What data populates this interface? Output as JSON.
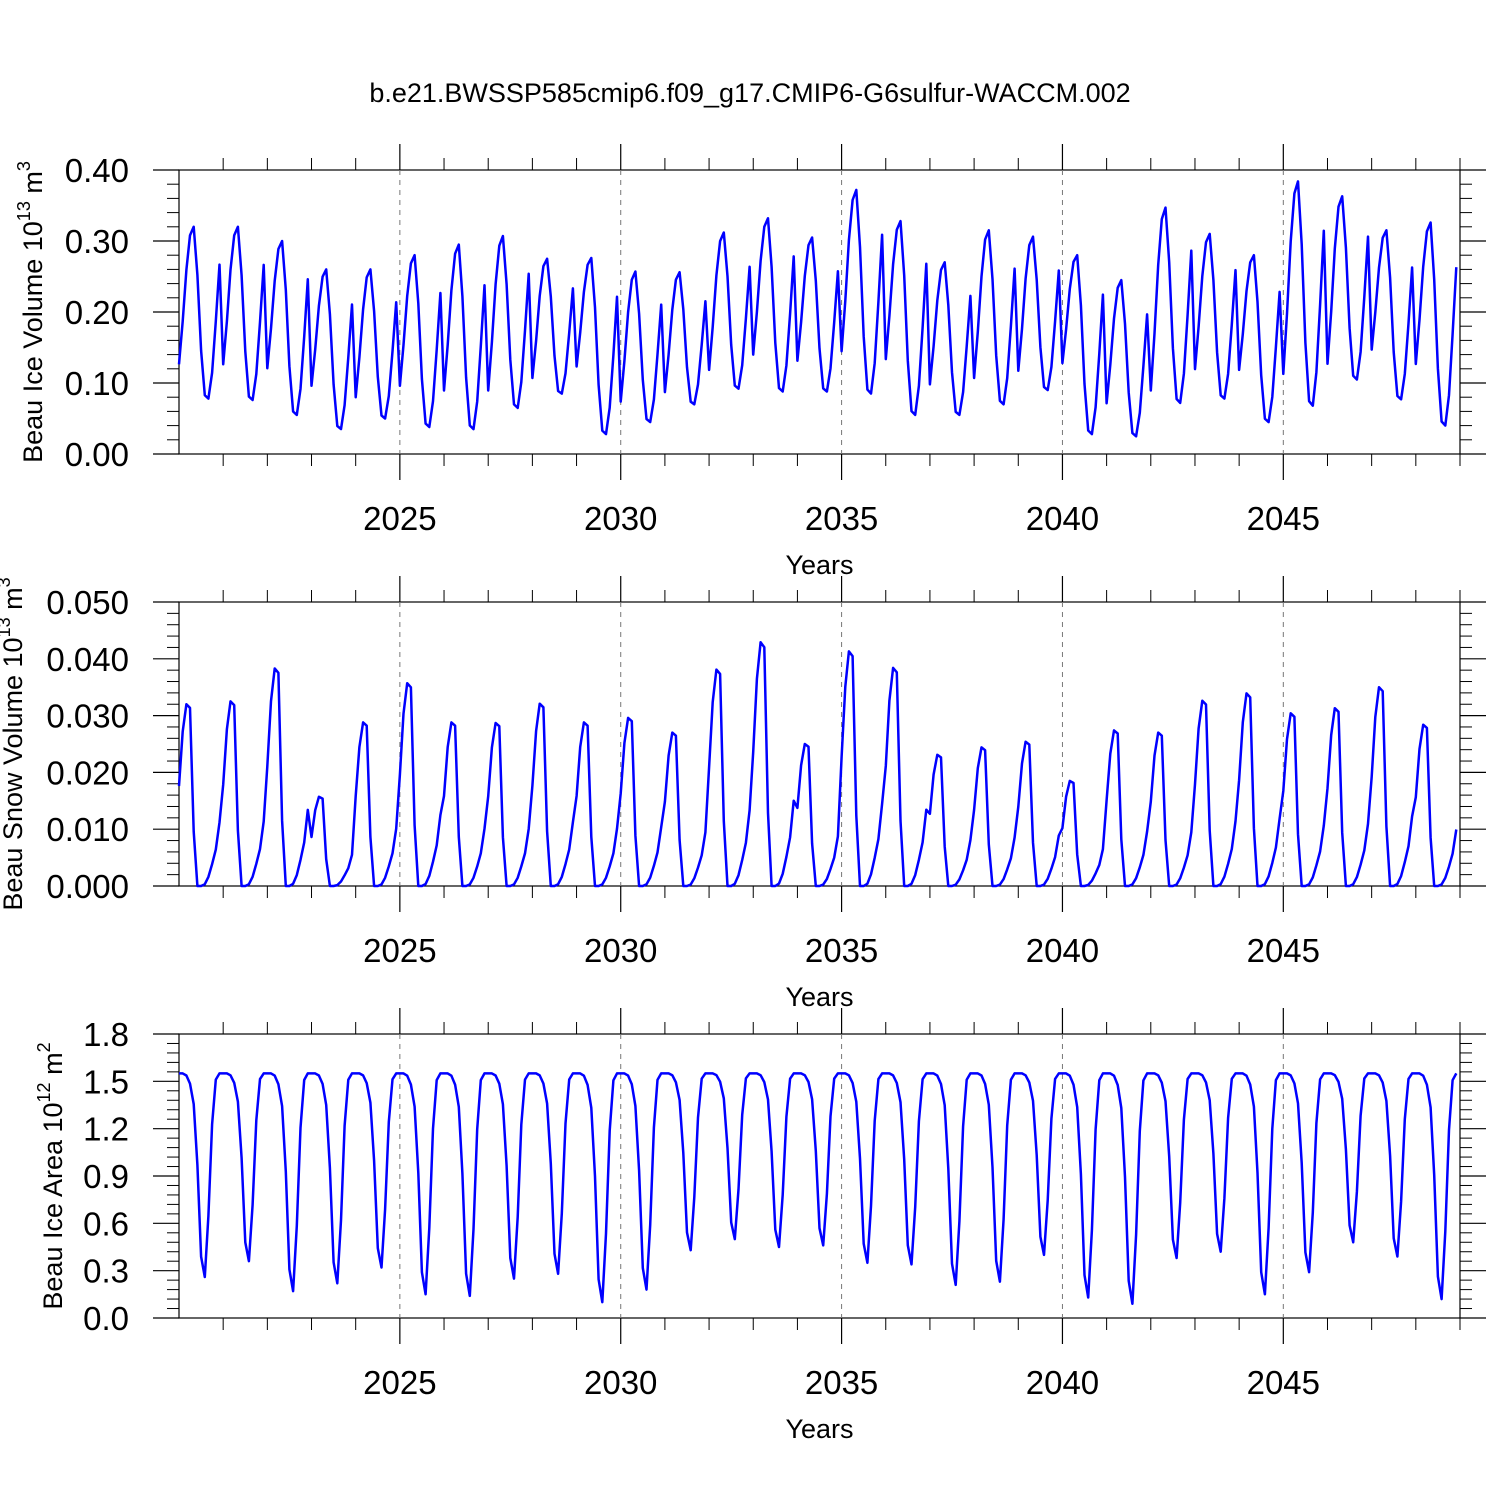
{
  "title": "b.e21.BWSSP585cmip6.f09_g17.CMIP6-G6sulfur-WACCM.002",
  "chart_data": [
    {
      "type": "line",
      "ylabel": "Beau Ice Volume 10",
      "ylabel_exp": "13",
      "ylabel_unit": " m",
      "ylabel_unit_exp": "3",
      "xlabel": "Years",
      "xlim": [
        2020.0,
        2049.0
      ],
      "ylim": [
        0.0,
        0.4
      ],
      "yticks": [
        "0.00",
        "0.10",
        "0.20",
        "0.30",
        "0.40"
      ],
      "xticks": [
        "2025",
        "2030",
        "2035",
        "2040",
        "2045"
      ],
      "series": [
        {
          "color": "#0000ff",
          "x_start": 2020.0,
          "x_step_months": 1,
          "peaks": [
            0.32,
            0.32,
            0.3,
            0.26,
            0.26,
            0.28,
            0.295,
            0.307,
            0.275,
            0.276,
            0.257,
            0.256,
            0.312,
            0.332,
            0.305,
            0.372,
            0.328,
            0.27,
            0.315,
            0.306,
            0.28,
            0.245,
            0.347,
            0.31,
            0.28,
            0.384,
            0.363,
            0.315,
            0.326
          ],
          "troughs": [
            0.078,
            0.076,
            0.055,
            0.035,
            0.05,
            0.038,
            0.035,
            0.065,
            0.085,
            0.028,
            0.045,
            0.07,
            0.092,
            0.088,
            0.088,
            0.085,
            0.055,
            0.055,
            0.07,
            0.09,
            0.028,
            0.025,
            0.072,
            0.078,
            0.045,
            0.068,
            0.105,
            0.077,
            0.04
          ]
        }
      ]
    },
    {
      "type": "line",
      "ylabel": "Beau Snow Volume 10",
      "ylabel_exp": "13",
      "ylabel_unit": " m",
      "ylabel_unit_exp": "3",
      "xlabel": "Years",
      "xlim": [
        2020.0,
        2049.0
      ],
      "ylim": [
        0.0,
        0.05
      ],
      "yticks": [
        "0.000",
        "0.010",
        "0.020",
        "0.030",
        "0.040",
        "0.050"
      ],
      "xticks": [
        "2025",
        "2030",
        "2035",
        "2040",
        "2045"
      ],
      "series": [
        {
          "color": "#0000ff",
          "x_start": 2020.0,
          "x_step_months": 1,
          "peaks": [
            0.032,
            0.0325,
            0.0383,
            0.0157,
            0.0288,
            0.0357,
            0.0288,
            0.0287,
            0.0321,
            0.0288,
            0.0296,
            0.027,
            0.0381,
            0.0429,
            0.025,
            0.0413,
            0.0384,
            0.0231,
            0.0244,
            0.0254,
            0.0185,
            0.0274,
            0.027,
            0.0326,
            0.0339,
            0.0304,
            0.0313,
            0.035,
            0.0284
          ]
        }
      ]
    },
    {
      "type": "line",
      "ylabel": "Beau Ice Area 10",
      "ylabel_exp": "12",
      "ylabel_unit": " m",
      "ylabel_unit_exp": "2",
      "xlabel": "Years",
      "xlim": [
        2020.0,
        2049.0
      ],
      "ylim": [
        0.0,
        1.8
      ],
      "yticks": [
        "0.0",
        "0.3",
        "0.6",
        "0.9",
        "1.2",
        "1.5",
        "1.8"
      ],
      "xticks": [
        "2025",
        "2030",
        "2035",
        "2040",
        "2045"
      ],
      "series": [
        {
          "color": "#0000ff",
          "x_start": 2020.0,
          "x_step_months": 1,
          "peak": 1.55,
          "troughs": [
            0.26,
            0.36,
            0.17,
            0.22,
            0.32,
            0.15,
            0.14,
            0.25,
            0.28,
            0.1,
            0.18,
            0.43,
            0.5,
            0.45,
            0.46,
            0.35,
            0.34,
            0.21,
            0.23,
            0.4,
            0.13,
            0.09,
            0.38,
            0.42,
            0.15,
            0.29,
            0.48,
            0.39,
            0.12
          ]
        }
      ]
    }
  ]
}
